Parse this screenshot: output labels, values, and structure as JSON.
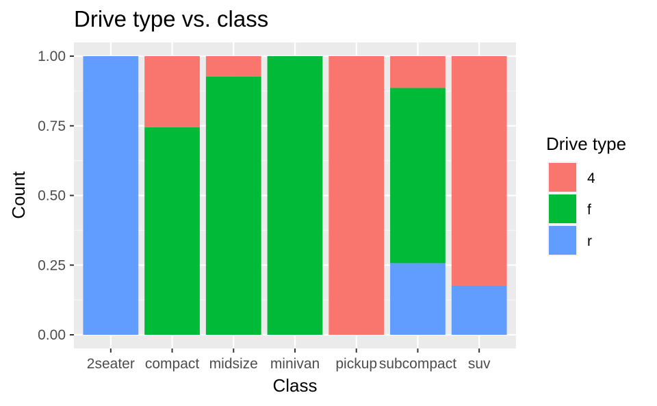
{
  "chart_data": {
    "type": "bar",
    "stacked": true,
    "position": "fill",
    "title": "Drive type vs. class",
    "xlabel": "Class",
    "ylabel": "Count",
    "categories": [
      "2seater",
      "compact",
      "midsize",
      "minivan",
      "pickup",
      "subcompact",
      "suv"
    ],
    "series": [
      {
        "name": "4",
        "color": "#F8766D",
        "values": [
          0,
          0.255,
          0.073,
          0,
          1.0,
          0.114,
          0.823
        ]
      },
      {
        "name": "f",
        "color": "#00BA38",
        "values": [
          0,
          0.745,
          0.927,
          1.0,
          0,
          0.629,
          0
        ]
      },
      {
        "name": "r",
        "color": "#619CFF",
        "values": [
          1.0,
          0,
          0,
          0,
          0,
          0.257,
          0.177
        ]
      }
    ],
    "ylim": [
      0,
      1
    ],
    "yticks": [
      0,
      0.25,
      0.5,
      0.75,
      1
    ],
    "ytick_labels": [
      "0.00",
      "0.25",
      "0.50",
      "0.75",
      "1.00"
    ],
    "grid": true,
    "legend": {
      "title": "Drive type",
      "placement": "right"
    }
  }
}
